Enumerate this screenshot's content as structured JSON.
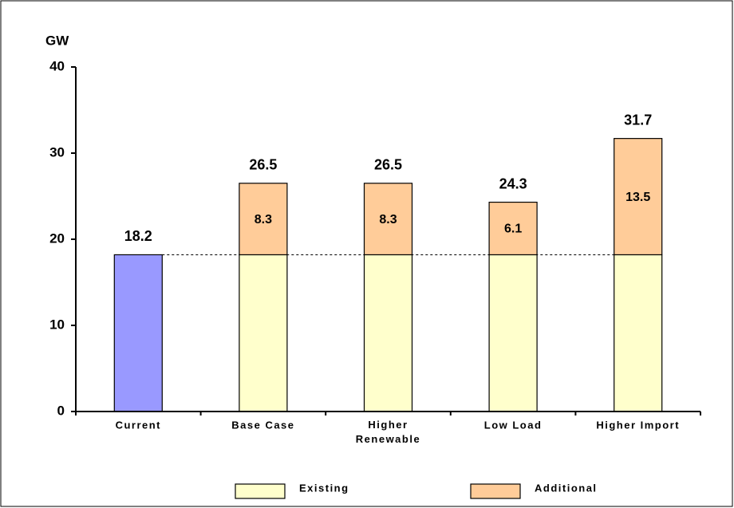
{
  "chart_data": {
    "type": "stacked_bar",
    "y_label": "GW",
    "categories": [
      "Current",
      "Base Case",
      "Higher\nRenewable",
      "Low Load",
      "Higher Import"
    ],
    "series": [
      {
        "name": "Existing",
        "color": "#ffffcc",
        "point_colors": [
          "#9999ff",
          "#ffffcc",
          "#ffffcc",
          "#ffffcc",
          "#ffffcc"
        ],
        "values": [
          18.2,
          18.2,
          18.2,
          18.2,
          18.2
        ]
      },
      {
        "name": "Additional",
        "color": "#ffcc99",
        "values": [
          null,
          8.3,
          8.3,
          6.1,
          13.5
        ]
      }
    ],
    "totals": [
      18.2,
      26.5,
      26.5,
      24.3,
      31.7
    ],
    "reference_line": 18.2,
    "ylim": [
      0,
      40
    ],
    "yticks": [
      0,
      10,
      20,
      30,
      40
    ],
    "legend": "bottom"
  }
}
